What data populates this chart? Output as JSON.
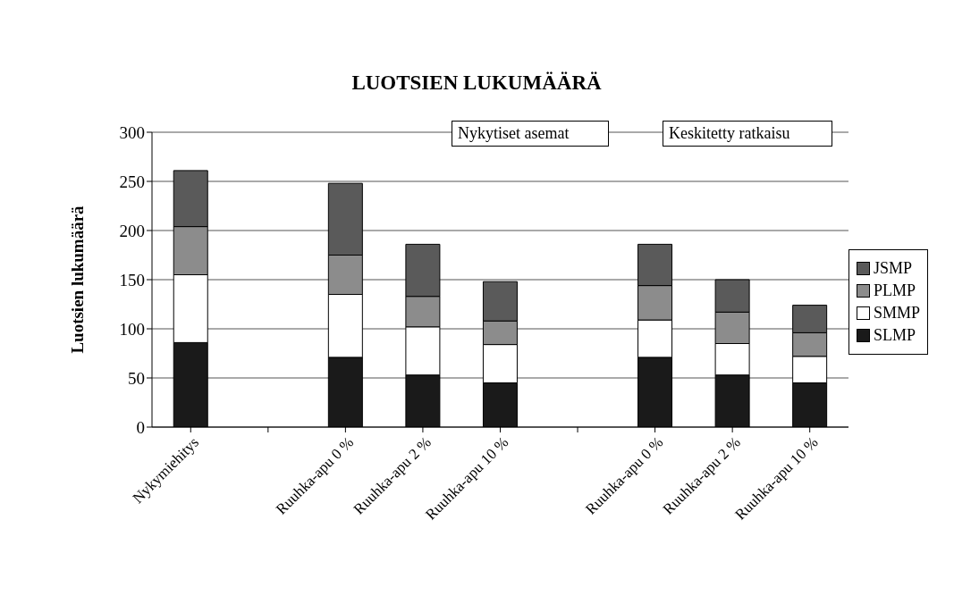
{
  "chart_data": {
    "type": "bar",
    "title": "LUOTSIEN LUKUMÄÄRÄ",
    "ylabel": "Luotsien lukumäärä",
    "categories": [
      "Nykymiehitys",
      null,
      "Ruuhka-apu 0 %",
      "Ruuhka-apu 2 %",
      "Ruuhka-apu 10 %",
      null,
      "Ruuhka-apu 0 %",
      "Ruuhka-apu 2 %",
      "Ruuhka-apu 10 %"
    ],
    "series": [
      {
        "name": "SLMP",
        "color": "#1a1a1a",
        "values": [
          86,
          null,
          71,
          53,
          45,
          null,
          71,
          53,
          45
        ]
      },
      {
        "name": "SMMP",
        "color": "#ffffff",
        "values": [
          69,
          null,
          64,
          49,
          39,
          null,
          38,
          32,
          27
        ]
      },
      {
        "name": "PLMP",
        "color": "#8c8c8c",
        "values": [
          49,
          null,
          40,
          31,
          24,
          null,
          35,
          32,
          24
        ]
      },
      {
        "name": "JSMP",
        "color": "#5a5a5a",
        "values": [
          57,
          null,
          73,
          53,
          40,
          null,
          42,
          33,
          28
        ]
      }
    ],
    "stacked": true,
    "ylim": [
      0,
      300
    ],
    "yticks": [
      0,
      50,
      100,
      150,
      200,
      250,
      300
    ],
    "grid": "y",
    "legend": "right",
    "annotations": [
      "Nykytiset asemat",
      "Keskitetty ratkaisu"
    ]
  }
}
